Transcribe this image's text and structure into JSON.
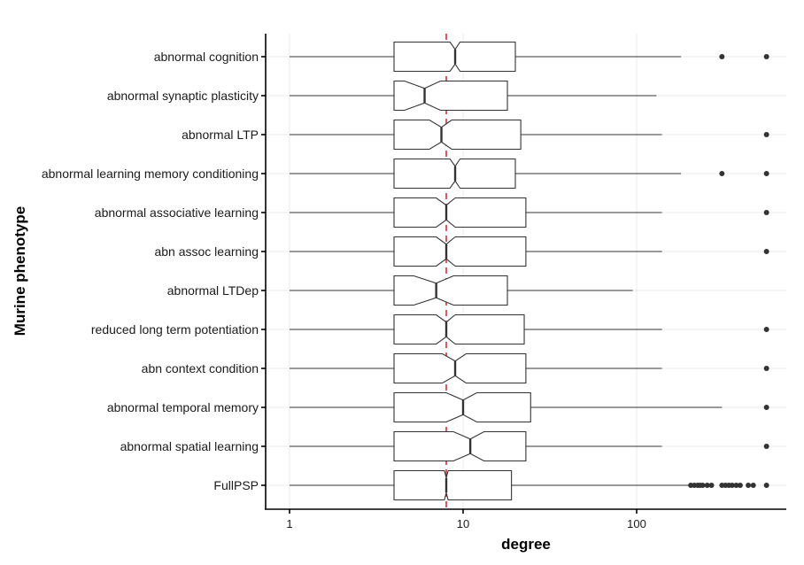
{
  "chart_data": {
    "type": "boxplot",
    "orientation": "horizontal",
    "notched": true,
    "xlabel": "degree",
    "ylabel": "Murine phenotype",
    "x_scale": "log10",
    "xlim": [
      0.8,
      720
    ],
    "x_ticks": [
      {
        "value": 1,
        "label": "1"
      },
      {
        "value": 10,
        "label": "10"
      },
      {
        "value": 100,
        "label": "100"
      }
    ],
    "reference_line": {
      "value": 8,
      "color": "#d32f3f",
      "style": "dashed"
    },
    "grid": true,
    "categories": [
      {
        "name": "abnormal cognition",
        "whisker_low": 1,
        "q1": 4,
        "median": 9,
        "q3": 20,
        "whisker_high": 180,
        "notch_low": 8.4,
        "notch_high": 9.6,
        "outliers": [
          310,
          560
        ]
      },
      {
        "name": "abnormal synaptic plasticity",
        "whisker_low": 1,
        "q1": 4,
        "median": 6,
        "q3": 18,
        "whisker_high": 130,
        "notch_low": 4.6,
        "notch_high": 7.4,
        "outliers": []
      },
      {
        "name": "abnormal LTP",
        "whisker_low": 1,
        "q1": 4,
        "median": 7.5,
        "q3": 21.5,
        "whisker_high": 140,
        "notch_low": 6.4,
        "notch_high": 8.6,
        "outliers": [
          560
        ]
      },
      {
        "name": "abnormal learning memory conditioning",
        "whisker_low": 1,
        "q1": 4,
        "median": 9,
        "q3": 20,
        "whisker_high": 180,
        "notch_low": 8.4,
        "notch_high": 9.6,
        "outliers": [
          310,
          560
        ]
      },
      {
        "name": "abnormal associative learning",
        "whisker_low": 1,
        "q1": 4,
        "median": 8,
        "q3": 23,
        "whisker_high": 140,
        "notch_low": 7.0,
        "notch_high": 9.0,
        "outliers": [
          560
        ]
      },
      {
        "name": "abn assoc learning",
        "whisker_low": 1,
        "q1": 4,
        "median": 8,
        "q3": 23,
        "whisker_high": 140,
        "notch_low": 7.0,
        "notch_high": 9.0,
        "outliers": [
          560
        ]
      },
      {
        "name": "abnormal LTDep",
        "whisker_low": 1,
        "q1": 4,
        "median": 7,
        "q3": 18,
        "whisker_high": 95,
        "notch_low": 5.2,
        "notch_high": 8.8,
        "outliers": []
      },
      {
        "name": "reduced long term potentiation",
        "whisker_low": 1,
        "q1": 4,
        "median": 8,
        "q3": 22.5,
        "whisker_high": 140,
        "notch_low": 7.0,
        "notch_high": 9.0,
        "outliers": [
          560
        ]
      },
      {
        "name": "abn context condition",
        "whisker_low": 1,
        "q1": 4,
        "median": 9,
        "q3": 23,
        "whisker_high": 140,
        "notch_low": 7.6,
        "notch_high": 10.4,
        "outliers": [
          560
        ]
      },
      {
        "name": "abnormal temporal memory",
        "whisker_low": 1,
        "q1": 4,
        "median": 10,
        "q3": 24.5,
        "whisker_high": 310,
        "notch_low": 8.0,
        "notch_high": 12.0,
        "outliers": [
          560
        ]
      },
      {
        "name": "abnormal spatial learning",
        "whisker_low": 1,
        "q1": 4,
        "median": 11,
        "q3": 23,
        "whisker_high": 140,
        "notch_low": 8.8,
        "notch_high": 13.2,
        "outliers": [
          560
        ]
      },
      {
        "name": "FullPSP",
        "whisker_low": 1,
        "q1": 4,
        "median": 8,
        "q3": 19,
        "whisker_high": 200,
        "notch_low": 7.8,
        "notch_high": 8.2,
        "outliers": [
          205,
          215,
          225,
          232,
          240,
          255,
          270,
          310,
          325,
          340,
          355,
          375,
          395,
          440,
          470,
          560
        ]
      }
    ]
  }
}
